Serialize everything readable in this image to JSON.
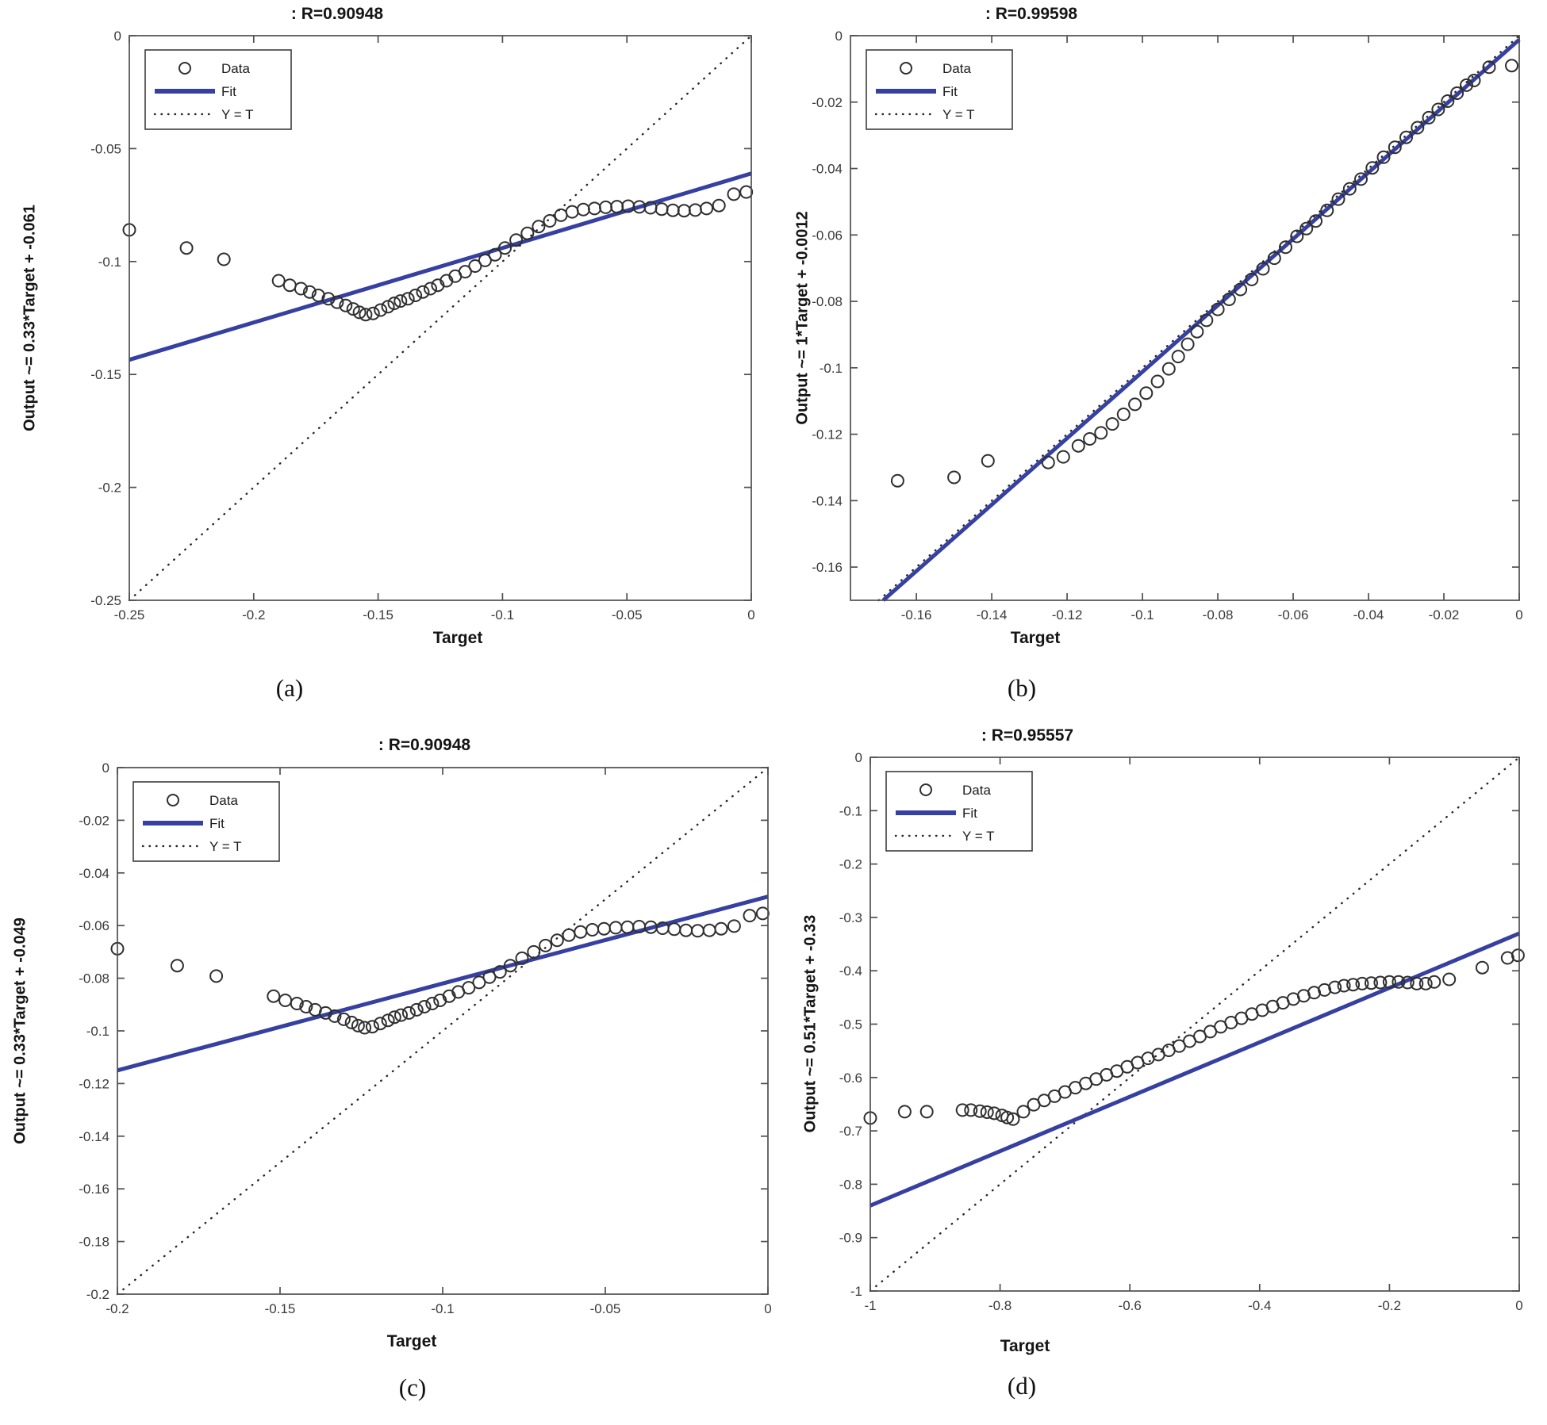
{
  "figure": {
    "background": "#ffffff",
    "colors": {
      "fit_line": "#3640a0",
      "data_marker": "#2f2f2f",
      "identity_line": "#262626",
      "axis": "#4f4f4f",
      "tick_label": "#3a3a3a",
      "text": "#141414"
    },
    "legend_items": [
      {
        "label": "Data",
        "type": "marker"
      },
      {
        "label": "Fit",
        "type": "line"
      },
      {
        "label": "Y = T",
        "type": "dotted"
      }
    ]
  },
  "chart_data": [
    {
      "id": "a",
      "type": "scatter",
      "title": ": R=0.90948",
      "xlabel": "Target",
      "ylabel": "Output ~= 0.33*Target + -0.061",
      "caption": "(a)",
      "legend_position": "top-left",
      "grid": false,
      "xlim": [
        -0.25,
        0
      ],
      "ylim": [
        -0.25,
        0
      ],
      "xticks": [
        -0.25,
        -0.2,
        -0.15,
        -0.1,
        -0.05,
        0
      ],
      "xtick_labels": [
        "-0.25",
        "-0.2",
        "-0.15",
        "-0.1",
        "-0.05",
        "0"
      ],
      "yticks": [
        0,
        -0.05,
        -0.1,
        -0.15,
        -0.2,
        -0.25
      ],
      "ytick_labels": [
        "0",
        "-0.05",
        "-0.1",
        "-0.15",
        "-0.2",
        "-0.25"
      ],
      "fit": {
        "slope": 0.33,
        "intercept": -0.061
      },
      "identity_line": true,
      "points": [
        [
          -0.25,
          -0.086
        ],
        [
          -0.227,
          -0.094
        ],
        [
          -0.212,
          -0.099
        ],
        [
          -0.19,
          -0.1085
        ],
        [
          -0.1855,
          -0.1105
        ],
        [
          -0.181,
          -0.112
        ],
        [
          -0.1775,
          -0.1135
        ],
        [
          -0.174,
          -0.115
        ],
        [
          -0.17,
          -0.1165
        ],
        [
          -0.1665,
          -0.118
        ],
        [
          -0.163,
          -0.1195
        ],
        [
          -0.16,
          -0.121
        ],
        [
          -0.1575,
          -0.1225
        ],
        [
          -0.155,
          -0.1235
        ],
        [
          -0.152,
          -0.123
        ],
        [
          -0.149,
          -0.1215
        ],
        [
          -0.146,
          -0.12
        ],
        [
          -0.1435,
          -0.1185
        ],
        [
          -0.141,
          -0.1175
        ],
        [
          -0.138,
          -0.1165
        ],
        [
          -0.135,
          -0.115
        ],
        [
          -0.132,
          -0.1135
        ],
        [
          -0.129,
          -0.112
        ],
        [
          -0.126,
          -0.1105
        ],
        [
          -0.1225,
          -0.1085
        ],
        [
          -0.119,
          -0.1065
        ],
        [
          -0.115,
          -0.1045
        ],
        [
          -0.111,
          -0.102
        ],
        [
          -0.107,
          -0.0995
        ],
        [
          -0.103,
          -0.097
        ],
        [
          -0.099,
          -0.094
        ],
        [
          -0.0945,
          -0.0905
        ],
        [
          -0.09,
          -0.0875
        ],
        [
          -0.0855,
          -0.0845
        ],
        [
          -0.081,
          -0.082
        ],
        [
          -0.0765,
          -0.0795
        ],
        [
          -0.072,
          -0.078
        ],
        [
          -0.0675,
          -0.077
        ],
        [
          -0.063,
          -0.0765
        ],
        [
          -0.0585,
          -0.076
        ],
        [
          -0.054,
          -0.0757
        ],
        [
          -0.0495,
          -0.0755
        ],
        [
          -0.045,
          -0.0758
        ],
        [
          -0.0405,
          -0.0762
        ],
        [
          -0.036,
          -0.0768
        ],
        [
          -0.0315,
          -0.0773
        ],
        [
          -0.027,
          -0.0775
        ],
        [
          -0.0225,
          -0.0772
        ],
        [
          -0.018,
          -0.0765
        ],
        [
          -0.013,
          -0.0752
        ],
        [
          -0.007,
          -0.0702
        ],
        [
          -0.002,
          -0.0692
        ]
      ]
    },
    {
      "id": "b",
      "type": "scatter",
      "title": ": R=0.99598",
      "xlabel": "Target",
      "ylabel": "Output ~= 1*Target + -0.0012",
      "caption": "(b)",
      "legend_position": "top-left",
      "grid": false,
      "xlim": [
        -0.1775,
        0
      ],
      "ylim": [
        -0.17,
        0
      ],
      "xticks": [
        -0.16,
        -0.14,
        -0.12,
        -0.1,
        -0.08,
        -0.06,
        -0.04,
        -0.02,
        0
      ],
      "xtick_labels": [
        "-0.16",
        "-0.14",
        "-0.12",
        "-0.1",
        "-0.08",
        "-0.06",
        "-0.04",
        "-0.02",
        "0"
      ],
      "yticks": [
        0,
        -0.02,
        -0.04,
        -0.06,
        -0.08,
        -0.1,
        -0.12,
        -0.14,
        -0.16
      ],
      "ytick_labels": [
        "0",
        "-0.02",
        "-0.04",
        "-0.06",
        "-0.08",
        "-0.1",
        "-0.12",
        "-0.14",
        "-0.16"
      ],
      "fit": {
        "slope": 1,
        "intercept": -0.0012
      },
      "identity_line": true,
      "points": [
        [
          -0.165,
          -0.134
        ],
        [
          -0.15,
          -0.133
        ],
        [
          -0.141,
          -0.128
        ],
        [
          -0.125,
          -0.1285
        ],
        [
          -0.121,
          -0.1268
        ],
        [
          -0.117,
          -0.1235
        ],
        [
          -0.114,
          -0.1214
        ],
        [
          -0.111,
          -0.1196
        ],
        [
          -0.108,
          -0.1169
        ],
        [
          -0.105,
          -0.114
        ],
        [
          -0.102,
          -0.111
        ],
        [
          -0.099,
          -0.1076
        ],
        [
          -0.096,
          -0.1041
        ],
        [
          -0.093,
          -0.1003
        ],
        [
          -0.0905,
          -0.0966
        ],
        [
          -0.088,
          -0.0929
        ],
        [
          -0.0855,
          -0.0891
        ],
        [
          -0.083,
          -0.0857
        ],
        [
          -0.08,
          -0.0824
        ],
        [
          -0.077,
          -0.0794
        ],
        [
          -0.074,
          -0.0764
        ],
        [
          -0.071,
          -0.0734
        ],
        [
          -0.068,
          -0.0702
        ],
        [
          -0.065,
          -0.067
        ],
        [
          -0.062,
          -0.0637
        ],
        [
          -0.059,
          -0.0604
        ],
        [
          -0.0565,
          -0.0581
        ],
        [
          -0.054,
          -0.0558
        ],
        [
          -0.051,
          -0.0526
        ],
        [
          -0.048,
          -0.0492
        ],
        [
          -0.045,
          -0.0461
        ],
        [
          -0.042,
          -0.0432
        ],
        [
          -0.039,
          -0.0398
        ],
        [
          -0.036,
          -0.0366
        ],
        [
          -0.033,
          -0.0336
        ],
        [
          -0.03,
          -0.0306
        ],
        [
          -0.027,
          -0.0277
        ],
        [
          -0.024,
          -0.0247
        ],
        [
          -0.0215,
          -0.0222
        ],
        [
          -0.019,
          -0.0197
        ],
        [
          -0.0165,
          -0.0173
        ],
        [
          -0.014,
          -0.0149
        ],
        [
          -0.012,
          -0.0135
        ],
        [
          -0.008,
          -0.0095
        ],
        [
          -0.002,
          -0.009
        ]
      ]
    },
    {
      "id": "c",
      "type": "scatter",
      "title": ": R=0.90948",
      "xlabel": "Target",
      "ylabel": "Output ~= 0.33*Target + -0.049",
      "caption": "(c)",
      "legend_position": "top-left",
      "grid": false,
      "xlim": [
        -0.2,
        0
      ],
      "ylim": [
        -0.2,
        0
      ],
      "xticks": [
        -0.2,
        -0.15,
        -0.1,
        -0.05,
        0
      ],
      "xtick_labels": [
        "-0.2",
        "-0.15",
        "-0.1",
        "-0.05",
        "0"
      ],
      "yticks": [
        0,
        -0.02,
        -0.04,
        -0.06,
        -0.08,
        -0.1,
        -0.12,
        -0.14,
        -0.16,
        -0.18,
        -0.2
      ],
      "ytick_labels": [
        "0",
        "-0.02",
        "-0.04",
        "-0.06",
        "-0.08",
        "-0.1",
        "-0.12",
        "-0.14",
        "-0.16",
        "-0.18",
        "-0.2"
      ],
      "fit": {
        "slope": 0.33,
        "intercept": -0.049
      },
      "identity_line": true,
      "points": [
        [
          -0.2,
          -0.0688
        ],
        [
          -0.1816,
          -0.0752
        ],
        [
          -0.1696,
          -0.0792
        ],
        [
          -0.152,
          -0.0868
        ],
        [
          -0.1484,
          -0.0884
        ],
        [
          -0.1448,
          -0.0896
        ],
        [
          -0.142,
          -0.0908
        ],
        [
          -0.1392,
          -0.092
        ],
        [
          -0.136,
          -0.0932
        ],
        [
          -0.1332,
          -0.0944
        ],
        [
          -0.1304,
          -0.0956
        ],
        [
          -0.128,
          -0.0968
        ],
        [
          -0.126,
          -0.098
        ],
        [
          -0.124,
          -0.0988
        ],
        [
          -0.1216,
          -0.0984
        ],
        [
          -0.1192,
          -0.0972
        ],
        [
          -0.1168,
          -0.096
        ],
        [
          -0.1148,
          -0.0948
        ],
        [
          -0.1128,
          -0.094
        ],
        [
          -0.1104,
          -0.0932
        ],
        [
          -0.108,
          -0.092
        ],
        [
          -0.1056,
          -0.0908
        ],
        [
          -0.1032,
          -0.0896
        ],
        [
          -0.1008,
          -0.0884
        ],
        [
          -0.098,
          -0.0868
        ],
        [
          -0.0952,
          -0.0852
        ],
        [
          -0.092,
          -0.0836
        ],
        [
          -0.0888,
          -0.0816
        ],
        [
          -0.0856,
          -0.0796
        ],
        [
          -0.0824,
          -0.0776
        ],
        [
          -0.0792,
          -0.0752
        ],
        [
          -0.0756,
          -0.0724
        ],
        [
          -0.072,
          -0.07
        ],
        [
          -0.0684,
          -0.0676
        ],
        [
          -0.0648,
          -0.0656
        ],
        [
          -0.0612,
          -0.0636
        ],
        [
          -0.0576,
          -0.0624
        ],
        [
          -0.054,
          -0.0616
        ],
        [
          -0.0504,
          -0.0612
        ],
        [
          -0.0468,
          -0.0608
        ],
        [
          -0.0432,
          -0.0606
        ],
        [
          -0.0396,
          -0.0604
        ],
        [
          -0.036,
          -0.0606
        ],
        [
          -0.0324,
          -0.061
        ],
        [
          -0.0288,
          -0.0614
        ],
        [
          -0.0252,
          -0.0618
        ],
        [
          -0.0216,
          -0.062
        ],
        [
          -0.018,
          -0.0618
        ],
        [
          -0.0144,
          -0.0612
        ],
        [
          -0.0104,
          -0.0602
        ],
        [
          -0.0056,
          -0.0562
        ],
        [
          -0.0016,
          -0.0554
        ]
      ]
    },
    {
      "id": "d",
      "type": "scatter",
      "title": ": R=0.95557",
      "xlabel": "Target",
      "ylabel": "Output ~= 0.51*Target + -0.33",
      "caption": "(d)",
      "legend_position": "top-left",
      "grid": false,
      "xlim": [
        -1,
        0
      ],
      "ylim": [
        -1,
        0
      ],
      "xticks": [
        -1,
        -0.8,
        -0.6,
        -0.4,
        -0.2,
        0
      ],
      "xtick_labels": [
        "-1",
        "-0.8",
        "-0.6",
        "-0.4",
        "-0.2",
        "0"
      ],
      "yticks": [
        0,
        -0.1,
        -0.2,
        -0.3,
        -0.4,
        -0.5,
        -0.6,
        -0.7,
        -0.8,
        -0.9,
        -1
      ],
      "ytick_labels": [
        "0",
        "-0.1",
        "-0.2",
        "-0.3",
        "-0.4",
        "-0.5",
        "-0.6",
        "-0.7",
        "-0.8",
        "-0.9",
        "-1"
      ],
      "fit": {
        "slope": 0.51,
        "intercept": -0.33
      },
      "identity_line": true,
      "points": [
        [
          -1.0,
          -0.676
        ],
        [
          -0.947,
          -0.664
        ],
        [
          -0.913,
          -0.664
        ],
        [
          -0.858,
          -0.661
        ],
        [
          -0.845,
          -0.661
        ],
        [
          -0.831,
          -0.663
        ],
        [
          -0.82,
          -0.665
        ],
        [
          -0.809,
          -0.667
        ],
        [
          -0.797,
          -0.671
        ],
        [
          -0.789,
          -0.675
        ],
        [
          -0.78,
          -0.678
        ],
        [
          -0.764,
          -0.664
        ],
        [
          -0.748,
          -0.651
        ],
        [
          -0.732,
          -0.643
        ],
        [
          -0.716,
          -0.635
        ],
        [
          -0.7,
          -0.627
        ],
        [
          -0.684,
          -0.619
        ],
        [
          -0.668,
          -0.611
        ],
        [
          -0.652,
          -0.603
        ],
        [
          -0.636,
          -0.595
        ],
        [
          -0.62,
          -0.588
        ],
        [
          -0.604,
          -0.58
        ],
        [
          -0.588,
          -0.572
        ],
        [
          -0.572,
          -0.564
        ],
        [
          -0.556,
          -0.557
        ],
        [
          -0.54,
          -0.549
        ],
        [
          -0.524,
          -0.541
        ],
        [
          -0.508,
          -0.532
        ],
        [
          -0.492,
          -0.523
        ],
        [
          -0.476,
          -0.514
        ],
        [
          -0.46,
          -0.505
        ],
        [
          -0.444,
          -0.497
        ],
        [
          -0.428,
          -0.489
        ],
        [
          -0.412,
          -0.481
        ],
        [
          -0.396,
          -0.474
        ],
        [
          -0.38,
          -0.467
        ],
        [
          -0.364,
          -0.46
        ],
        [
          -0.348,
          -0.453
        ],
        [
          -0.332,
          -0.447
        ],
        [
          -0.316,
          -0.441
        ],
        [
          -0.3,
          -0.436
        ],
        [
          -0.284,
          -0.431
        ],
        [
          -0.27,
          -0.428
        ],
        [
          -0.256,
          -0.426
        ],
        [
          -0.242,
          -0.424
        ],
        [
          -0.228,
          -0.423
        ],
        [
          -0.214,
          -0.422
        ],
        [
          -0.2,
          -0.421
        ],
        [
          -0.186,
          -0.421
        ],
        [
          -0.172,
          -0.422
        ],
        [
          -0.158,
          -0.424
        ],
        [
          -0.144,
          -0.424
        ],
        [
          -0.131,
          -0.421
        ],
        [
          -0.108,
          -0.416
        ],
        [
          -0.057,
          -0.394
        ],
        [
          -0.018,
          -0.376
        ],
        [
          -0.002,
          -0.371
        ]
      ]
    }
  ]
}
